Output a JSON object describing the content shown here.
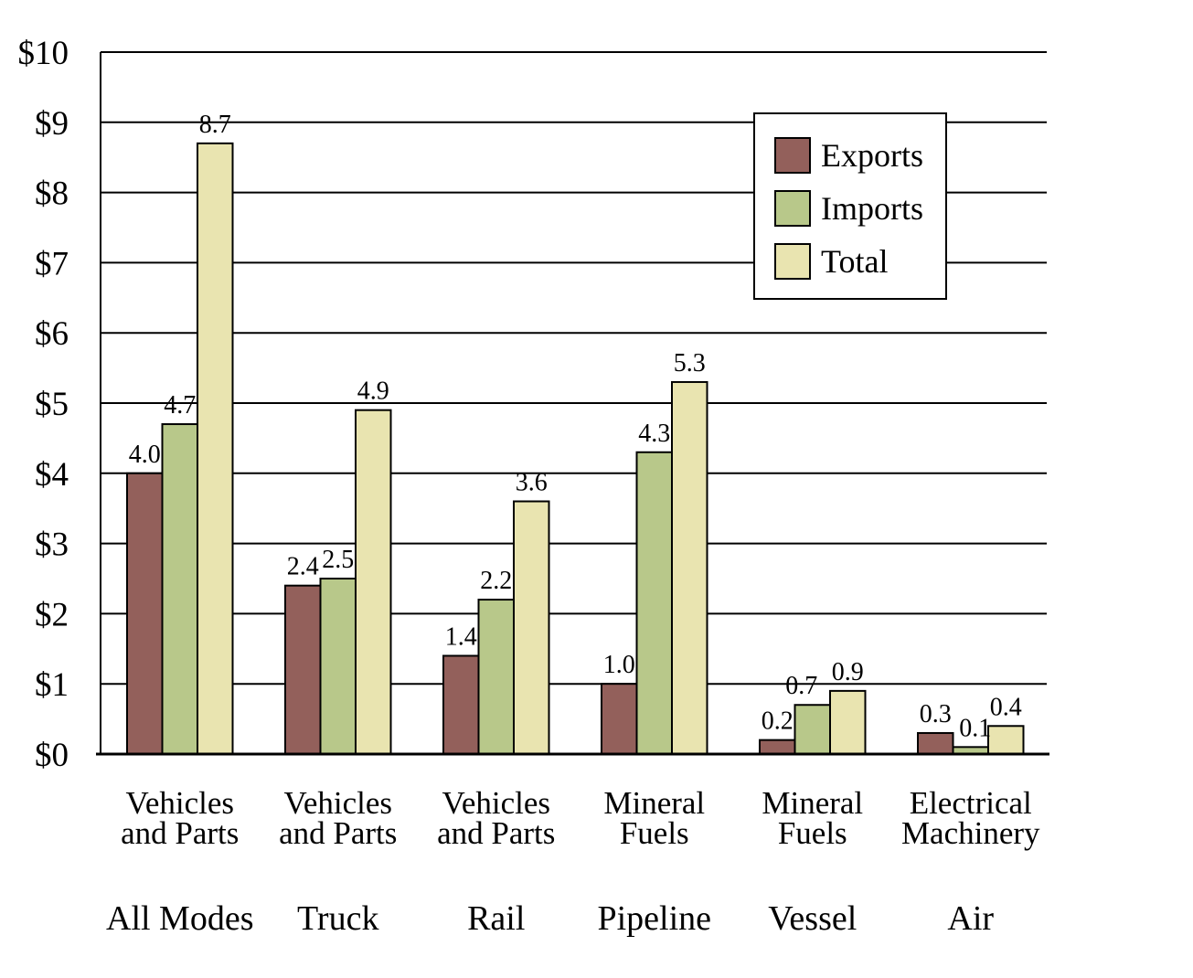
{
  "chart_data": {
    "type": "bar",
    "groups": [
      {
        "category": [
          "Vehicles",
          "and Parts"
        ],
        "mode": "All Modes"
      },
      {
        "category": [
          "Vehicles",
          "and Parts"
        ],
        "mode": "Truck"
      },
      {
        "category": [
          "Vehicles",
          "and Parts"
        ],
        "mode": "Rail"
      },
      {
        "category": [
          "Mineral",
          "Fuels"
        ],
        "mode": "Pipeline"
      },
      {
        "category": [
          "Mineral",
          "Fuels"
        ],
        "mode": "Vessel"
      },
      {
        "category": [
          "Electrical",
          "Machinery"
        ],
        "mode": "Air"
      }
    ],
    "series": [
      {
        "name": "Exports",
        "color": "#93605b",
        "values": [
          4.0,
          2.4,
          1.4,
          1.0,
          0.2,
          0.3
        ],
        "labels": [
          "4.0",
          "2.4",
          "1.4",
          "1.0",
          "0.2",
          "0.3"
        ]
      },
      {
        "name": "Imports",
        "color": "#b8c88a",
        "values": [
          4.7,
          2.5,
          2.2,
          4.3,
          0.7,
          0.1
        ],
        "labels": [
          "4.7",
          "2.5",
          "2.2",
          "4.3",
          "0.7",
          "0.1"
        ]
      },
      {
        "name": "Total",
        "color": "#e9e4b0",
        "values": [
          8.7,
          4.9,
          3.6,
          5.3,
          0.9,
          0.4
        ],
        "labels": [
          "8.7",
          "4.9",
          "3.6",
          "5.3",
          "0.9",
          "0.4"
        ]
      }
    ],
    "y_ticks": [
      0,
      1,
      2,
      3,
      4,
      5,
      6,
      7,
      8,
      9,
      10
    ],
    "y_tick_labels": [
      "$0",
      "$1",
      "$2",
      "$3",
      "$4",
      "$5",
      "$6",
      "$7",
      "$8",
      "$9",
      "$10"
    ],
    "ylim": [
      0,
      10
    ],
    "grid": true,
    "legend_position": "top-right"
  }
}
